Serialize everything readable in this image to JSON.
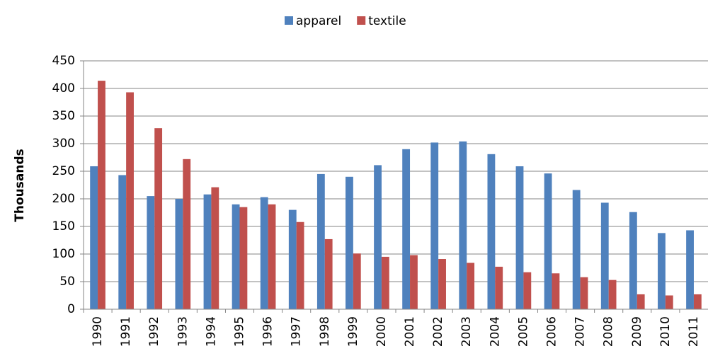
{
  "chart_data": {
    "type": "bar",
    "y_label": "Thousands",
    "categories": [
      "1990",
      "1991",
      "1992",
      "1993",
      "1994",
      "1995",
      "1996",
      "1997",
      "1998",
      "1999",
      "2000",
      "2001",
      "2002",
      "2003",
      "2004",
      "2005",
      "2006",
      "2007",
      "2008",
      "2009",
      "2010",
      "2011"
    ],
    "series": [
      {
        "name": "apparel",
        "color": "#4f81bd",
        "values": [
          259,
          243,
          205,
          200,
          208,
          190,
          203,
          180,
          245,
          240,
          261,
          290,
          302,
          304,
          281,
          259,
          246,
          216,
          193,
          176,
          138,
          143
        ]
      },
      {
        "name": "textile",
        "color": "#c0504d",
        "values": [
          414,
          393,
          328,
          272,
          221,
          185,
          190,
          158,
          127,
          101,
          95,
          98,
          91,
          84,
          77,
          67,
          65,
          58,
          53,
          27,
          25,
          27
        ]
      }
    ],
    "ylim": [
      0,
      450
    ],
    "yticks": [
      0,
      50,
      100,
      150,
      200,
      250,
      300,
      350,
      400,
      450
    ],
    "grid": true,
    "legend": "top"
  }
}
